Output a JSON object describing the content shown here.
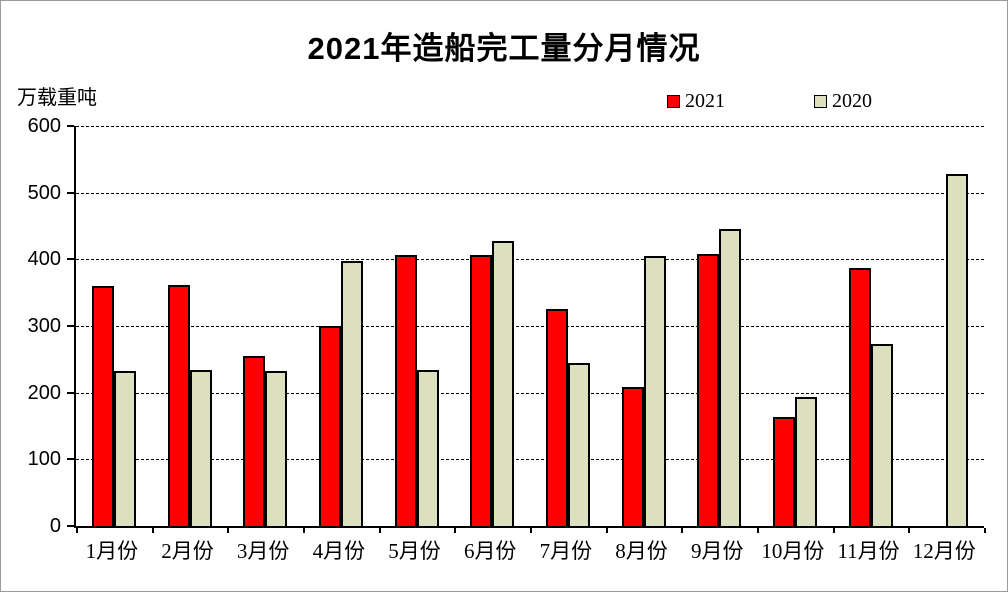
{
  "title": "2021年造船完工量分月情况",
  "ylabel": "万载重吨",
  "chart_data": {
    "type": "bar",
    "title": "2021年造船完工量分月情况",
    "ylabel": "万载重吨",
    "categories": [
      "1月份",
      "2月份",
      "3月份",
      "4月份",
      "5月份",
      "6月份",
      "7月份",
      "8月份",
      "9月份",
      "10月份",
      "11月份",
      "12月份"
    ],
    "series": [
      {
        "name": "2021",
        "color": "#ff0000",
        "values": [
          360,
          362,
          255,
          300,
          406,
          406,
          326,
          208,
          408,
          164,
          387,
          null
        ]
      },
      {
        "name": "2020",
        "color": "#dce0be",
        "values": [
          232,
          234,
          232,
          398,
          234,
          428,
          244,
          405,
          445,
          193,
          273,
          528
        ]
      }
    ],
    "ylim": [
      0,
      600
    ],
    "yticks": [
      0,
      100,
      200,
      300,
      400,
      500,
      600
    ],
    "grid": "horizontal-dashed",
    "legend_position": "top-right",
    "bar_border_color": "#000000",
    "axis_color": "#000000"
  }
}
